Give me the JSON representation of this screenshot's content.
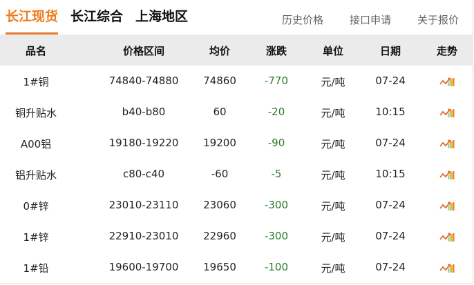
{
  "tabs": [
    {
      "label": "长江现货",
      "active": true
    },
    {
      "label": "长江综合"
    },
    {
      "label": "上海地区"
    }
  ],
  "links": [
    "历史价格",
    "接口申请",
    "关于报价"
  ],
  "columns": [
    "品名",
    "价格区间",
    "均价",
    "涨跌",
    "单位",
    "日期",
    "走势"
  ],
  "colors": {
    "accent": "#f07a1a",
    "down": "#2a7a2a",
    "header_bg": "#ebebeb"
  },
  "rows": [
    {
      "name": "1#铜",
      "range": "74840-74880",
      "avg": "74860",
      "change": "-770",
      "unit": "元/吨",
      "date": "07-24",
      "trend": "trend-chart-icon"
    },
    {
      "name": "铜升贴水",
      "range": "b40-b80",
      "avg": "60",
      "change": "-20",
      "unit": "元/吨",
      "date": "10:15",
      "trend": "trend-chart-icon"
    },
    {
      "name": "A00铝",
      "range": "19180-19220",
      "avg": "19200",
      "change": "-90",
      "unit": "元/吨",
      "date": "07-24",
      "trend": "trend-chart-icon"
    },
    {
      "name": "铝升贴水",
      "range": "c80-c40",
      "avg": "-60",
      "change": "-5",
      "unit": "元/吨",
      "date": "10:15",
      "trend": "trend-chart-icon"
    },
    {
      "name": "0#锌",
      "range": "23010-23110",
      "avg": "23060",
      "change": "-300",
      "unit": "元/吨",
      "date": "07-24",
      "trend": "trend-chart-icon"
    },
    {
      "name": "1#锌",
      "range": "22910-23010",
      "avg": "22960",
      "change": "-300",
      "unit": "元/吨",
      "date": "07-24",
      "trend": "trend-chart-icon"
    },
    {
      "name": "1#铅",
      "range": "19600-19700",
      "avg": "19650",
      "change": "-100",
      "unit": "元/吨",
      "date": "07-24",
      "trend": "trend-chart-icon"
    }
  ]
}
